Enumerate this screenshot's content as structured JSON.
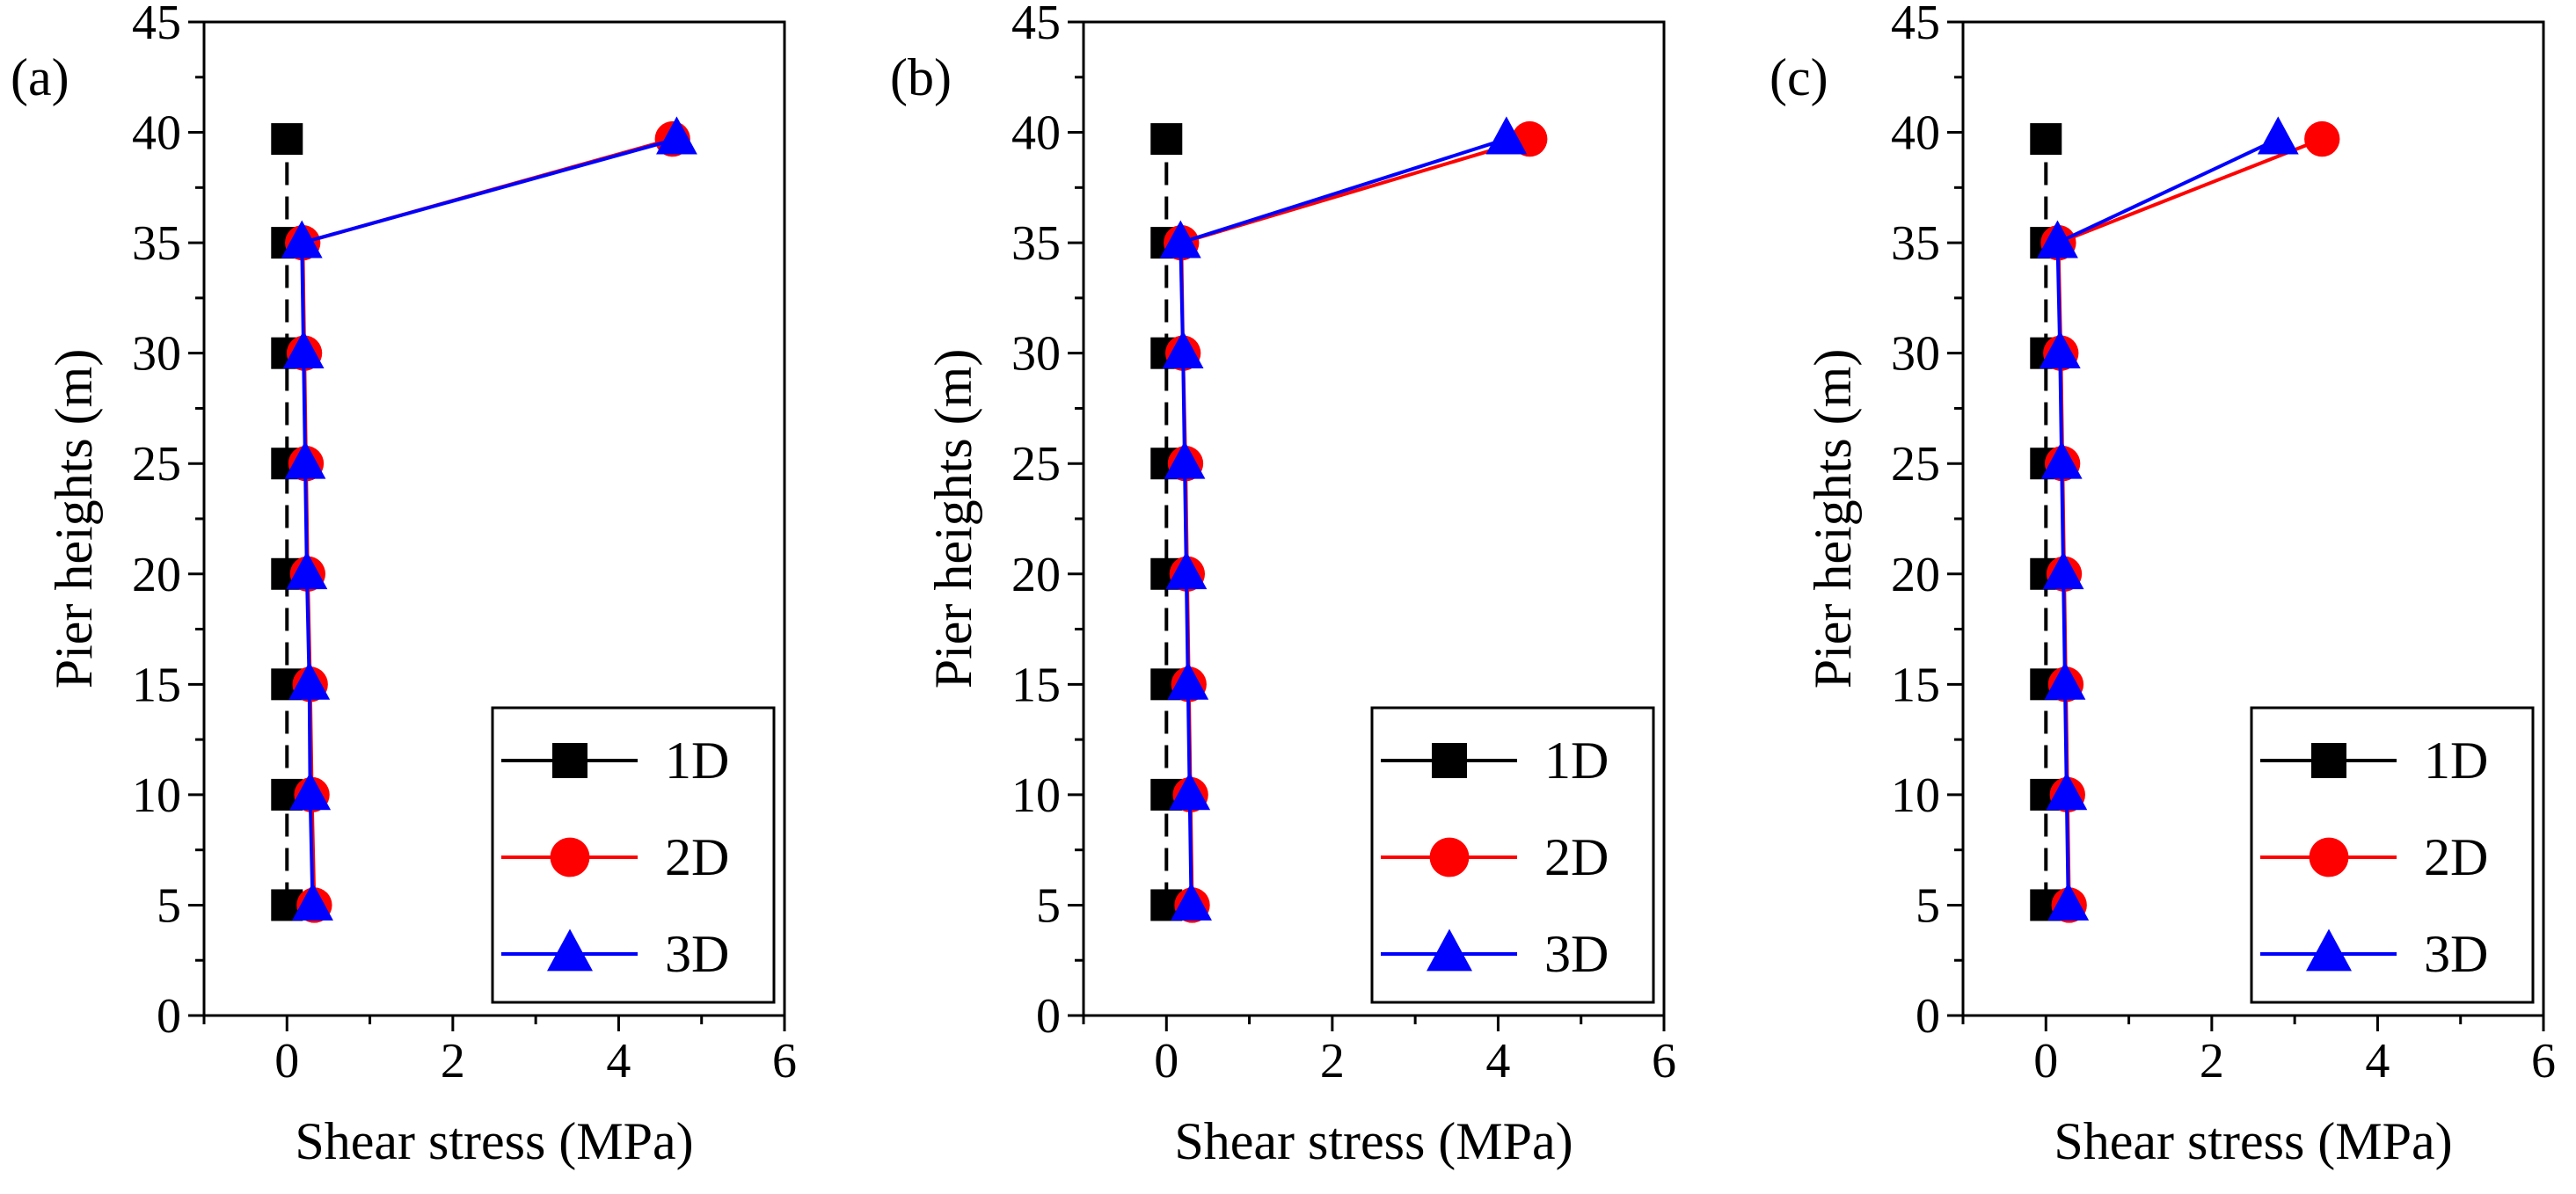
{
  "chart_data": [
    {
      "type": "line",
      "panel_label": "(a)",
      "xlabel": "Shear stress (MPa)",
      "ylabel": "Pier heights (m)",
      "xlim": [
        -1,
        6
      ],
      "ylim": [
        0,
        45
      ],
      "x_ticks": [
        0,
        2,
        4,
        6
      ],
      "y_ticks": [
        0,
        5,
        10,
        15,
        20,
        25,
        30,
        35,
        40,
        45
      ],
      "legend_position": "bottom-right",
      "series": [
        {
          "name": "1D",
          "color": "#000000",
          "marker": "square",
          "line_style": "dashed",
          "x": [
            0.0,
            0.0,
            0.0,
            0.0,
            0.0,
            0.0,
            0.0,
            0.0
          ],
          "y": [
            5,
            10,
            15,
            20,
            25,
            30,
            35,
            39.7
          ]
        },
        {
          "name": "2D",
          "color": "#ff0000",
          "marker": "circle",
          "line_style": "solid",
          "x": [
            0.33,
            0.3,
            0.28,
            0.25,
            0.23,
            0.21,
            0.19,
            4.65
          ],
          "y": [
            5,
            10,
            15,
            20,
            25,
            30,
            35,
            39.7
          ]
        },
        {
          "name": "3D",
          "color": "#0000ff",
          "marker": "triangle",
          "line_style": "solid",
          "x": [
            0.31,
            0.28,
            0.27,
            0.24,
            0.22,
            0.2,
            0.18,
            4.7
          ],
          "y": [
            5,
            10,
            15,
            20,
            25,
            30,
            35,
            39.7
          ]
        }
      ]
    },
    {
      "type": "line",
      "panel_label": "(b)",
      "xlabel": "Shear stress (MPa)",
      "ylabel": "Pier heights (m)",
      "xlim": [
        -1,
        6
      ],
      "ylim": [
        0,
        45
      ],
      "x_ticks": [
        0,
        2,
        4,
        6
      ],
      "y_ticks": [
        0,
        5,
        10,
        15,
        20,
        25,
        30,
        35,
        40,
        45
      ],
      "legend_position": "bottom-right",
      "series": [
        {
          "name": "1D",
          "color": "#000000",
          "marker": "square",
          "line_style": "dashed",
          "x": [
            0.0,
            0.0,
            0.0,
            0.0,
            0.0,
            0.0,
            0.0,
            0.0
          ],
          "y": [
            5,
            10,
            15,
            20,
            25,
            30,
            35,
            39.7
          ]
        },
        {
          "name": "2D",
          "color": "#ff0000",
          "marker": "circle",
          "line_style": "solid",
          "x": [
            0.31,
            0.29,
            0.27,
            0.25,
            0.23,
            0.2,
            0.18,
            4.38
          ],
          "y": [
            5,
            10,
            15,
            20,
            25,
            30,
            35,
            39.7
          ]
        },
        {
          "name": "3D",
          "color": "#0000ff",
          "marker": "triangle",
          "line_style": "solid",
          "x": [
            0.3,
            0.28,
            0.26,
            0.24,
            0.22,
            0.2,
            0.17,
            4.1
          ],
          "y": [
            5,
            10,
            15,
            20,
            25,
            30,
            35,
            39.7
          ]
        }
      ]
    },
    {
      "type": "line",
      "panel_label": "(c)",
      "xlabel": "Shear stress (MPa)",
      "ylabel": "Pier heights (m)",
      "xlim": [
        -1,
        6
      ],
      "ylim": [
        0,
        45
      ],
      "x_ticks": [
        0,
        2,
        4,
        6
      ],
      "y_ticks": [
        0,
        5,
        10,
        15,
        20,
        25,
        30,
        35,
        40,
        45
      ],
      "legend_position": "bottom-right",
      "series": [
        {
          "name": "1D",
          "color": "#000000",
          "marker": "square",
          "line_style": "dashed",
          "x": [
            0.0,
            0.0,
            0.0,
            0.0,
            0.0,
            0.0,
            0.0,
            0.0
          ],
          "y": [
            5,
            10,
            15,
            20,
            25,
            30,
            35,
            39.7
          ]
        },
        {
          "name": "2D",
          "color": "#ff0000",
          "marker": "circle",
          "line_style": "solid",
          "x": [
            0.28,
            0.26,
            0.24,
            0.22,
            0.2,
            0.18,
            0.15,
            3.33
          ],
          "y": [
            5,
            10,
            15,
            20,
            25,
            30,
            35,
            39.7
          ]
        },
        {
          "name": "3D",
          "color": "#0000ff",
          "marker": "triangle",
          "line_style": "solid",
          "x": [
            0.27,
            0.25,
            0.23,
            0.21,
            0.19,
            0.17,
            0.14,
            2.8
          ],
          "y": [
            5,
            10,
            15,
            20,
            25,
            30,
            35,
            39.7
          ]
        }
      ]
    }
  ]
}
